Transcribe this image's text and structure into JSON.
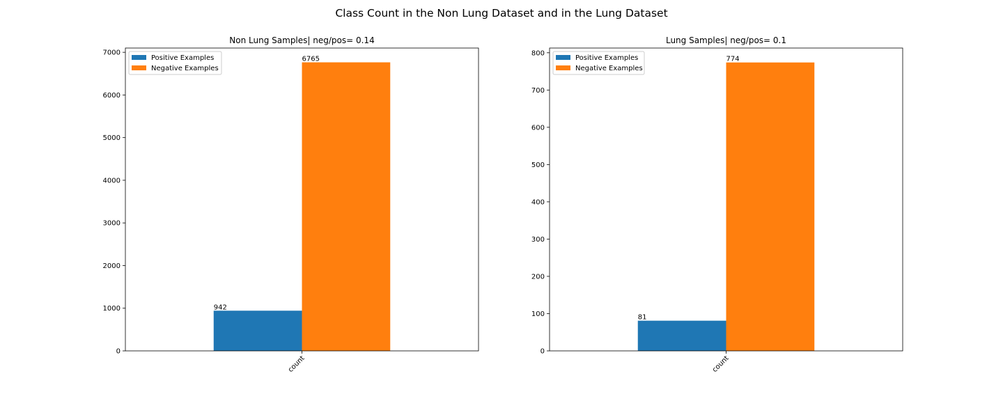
{
  "suptitle": "Class Count in the Non Lung Dataset and in the Lung Dataset",
  "chart_data": [
    {
      "type": "bar",
      "title": "Non Lung Samples| neg/pos= 0.14",
      "categories": [
        "count"
      ],
      "series": [
        {
          "name": "Positive Examples",
          "values": [
            942
          ],
          "color": "#1f77b4"
        },
        {
          "name": "Negative Examples",
          "values": [
            6765
          ],
          "color": "#ff7f0e"
        }
      ],
      "data_labels": [
        "942",
        "6765"
      ],
      "ylim": [
        0,
        7100
      ],
      "yticks": [
        0,
        1000,
        2000,
        3000,
        4000,
        5000,
        6000,
        7000
      ],
      "xlabel": "",
      "ylabel": "",
      "legend": "upper-left",
      "grid": false
    },
    {
      "type": "bar",
      "title": "Lung Samples| neg/pos= 0.1",
      "categories": [
        "count"
      ],
      "series": [
        {
          "name": "Positive Examples",
          "values": [
            81
          ],
          "color": "#1f77b4"
        },
        {
          "name": "Negative Examples",
          "values": [
            774
          ],
          "color": "#ff7f0e"
        }
      ],
      "data_labels": [
        "81",
        "774"
      ],
      "ylim": [
        0,
        812.7
      ],
      "yticks": [
        0,
        100,
        200,
        300,
        400,
        500,
        600,
        700,
        800
      ],
      "xlabel": "",
      "ylabel": "",
      "legend": "upper-left",
      "grid": false
    }
  ]
}
